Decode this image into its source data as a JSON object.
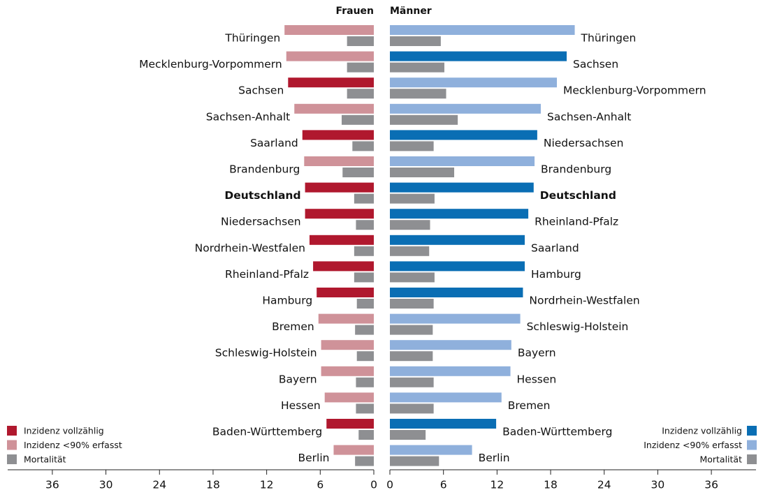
{
  "chart_data": [
    {
      "type": "bar",
      "orientation": "horizontal",
      "direction": "left",
      "title": "Frauen",
      "categories": [
        "Thüringen",
        "Mecklenburg-Vorpommern",
        "Sachsen",
        "Sachsen-Anhalt",
        "Saarland",
        "Brandenburg",
        "Deutschland",
        "Niedersachsen",
        "Nordrhein-Westfalen",
        "Rheinland-Pfalz",
        "Hamburg",
        "Bremen",
        "Schleswig-Holstein",
        "Bayern",
        "Hessen",
        "Baden-Württemberg",
        "Berlin"
      ],
      "bold_index": 6,
      "series": [
        {
          "name": "Inzidenz vollzählig",
          "color": "#b0182e",
          "values": [
            null,
            null,
            9.6,
            null,
            8.0,
            null,
            7.7,
            7.7,
            7.2,
            6.8,
            6.4,
            null,
            null,
            null,
            null,
            5.3,
            null
          ]
        },
        {
          "name": "Inzidenz <90% erfasst",
          "color": "#cf9299",
          "values": [
            10.0,
            9.8,
            null,
            8.9,
            null,
            7.8,
            null,
            null,
            null,
            null,
            null,
            6.2,
            5.9,
            5.9,
            5.5,
            null,
            4.5
          ]
        },
        {
          "name": "Mortalität",
          "color": "#8e8f92",
          "values": [
            3.0,
            3.0,
            3.0,
            3.6,
            2.4,
            3.5,
            2.2,
            2.0,
            2.2,
            2.2,
            1.9,
            2.1,
            1.9,
            2.0,
            2.0,
            1.7,
            2.1
          ]
        }
      ],
      "xlim": [
        0,
        41
      ],
      "xticks": [
        0,
        6,
        12,
        18,
        24,
        30,
        36
      ],
      "legend": "bottom-left"
    },
    {
      "type": "bar",
      "orientation": "horizontal",
      "direction": "right",
      "title": "Männer",
      "categories": [
        "Thüringen",
        "Sachsen",
        "Mecklenburg-Vorpommern",
        "Sachsen-Anhalt",
        "Niedersachsen",
        "Brandenburg",
        "Deutschland",
        "Rheinland-Pfalz",
        "Saarland",
        "Hamburg",
        "Nordrhein-Westfalen",
        "Schleswig-Holstein",
        "Bayern",
        "Hessen",
        "Bremen",
        "Baden-Württemberg",
        "Berlin"
      ],
      "bold_index": 6,
      "series": [
        {
          "name": "Inzidenz vollzählig",
          "color": "#0a6eb4",
          "values": [
            null,
            19.8,
            null,
            null,
            16.5,
            null,
            16.1,
            15.5,
            15.1,
            15.1,
            14.9,
            null,
            null,
            null,
            null,
            11.9,
            null
          ]
        },
        {
          "name": "Inzidenz <90% erfasst",
          "color": "#8fb0dc",
          "values": [
            20.7,
            null,
            18.7,
            16.9,
            null,
            16.2,
            null,
            null,
            null,
            null,
            null,
            14.6,
            13.6,
            13.5,
            12.5,
            null,
            9.2
          ]
        },
        {
          "name": "Mortalität",
          "color": "#8e8f92",
          "values": [
            5.7,
            6.1,
            6.3,
            7.6,
            4.9,
            7.2,
            5.0,
            4.5,
            4.4,
            5.0,
            4.9,
            4.8,
            4.8,
            4.9,
            4.9,
            4.0,
            5.5
          ]
        }
      ],
      "xlim": [
        0,
        41
      ],
      "xticks": [
        0,
        6,
        12,
        18,
        24,
        30,
        36
      ],
      "legend": "bottom-right"
    }
  ]
}
